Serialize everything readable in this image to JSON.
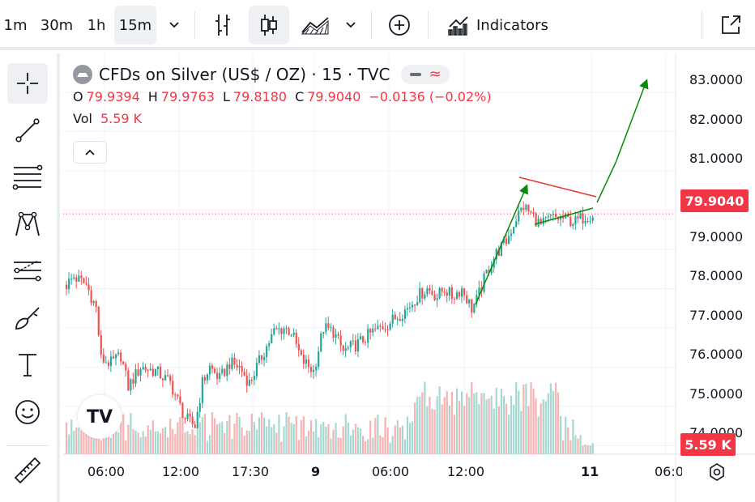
{
  "toolbar": {
    "intervals": [
      "1m",
      "30m",
      "1h",
      "15m"
    ],
    "active_interval": "15m",
    "indicators_label": "Indicators"
  },
  "symbol": {
    "title": "CFDs on Silver (US$ / OZ) · 15 · TVC",
    "open_key": "O",
    "open": "79.9394",
    "high_key": "H",
    "high": "79.9763",
    "low_key": "L",
    "low": "79.8180",
    "close_key": "C",
    "close": "79.9040",
    "change": "−0.0136 (−0.02%)",
    "vol_key": "Vol",
    "vol": "5.59 K"
  },
  "price_axis": {
    "labels": [
      "83.0000",
      "82.0000",
      "81.0000",
      "79.0000",
      "78.0000",
      "77.0000",
      "76.0000",
      "75.0000",
      "74.0000"
    ],
    "last_price": "79.9040",
    "volume_badge": "5.59 K"
  },
  "time_axis": {
    "labels": [
      "06:00",
      "12:00",
      "17:30",
      "9",
      "06:00",
      "12:00",
      "11",
      "06:0"
    ]
  },
  "logo_text": "TV",
  "colors": {
    "up": "#26a69a",
    "down": "#ef5350",
    "vol_up": "#a5d8d1",
    "vol_down": "#f7b3b2",
    "arrow_green": "#0a8a0a",
    "flag_red": "#e03b30",
    "price_line": "#f23645"
  },
  "chart_data": {
    "type": "candlestick",
    "symbol": "CFDs on Silver (US$ / OZ)",
    "interval": "15",
    "ylim": [
      73.8,
      83.8
    ],
    "price_path": [
      [
        0,
        78.1
      ],
      [
        3,
        78.3
      ],
      [
        8,
        78.1
      ],
      [
        12,
        77.5
      ],
      [
        14,
        76.2
      ],
      [
        18,
        76.1
      ],
      [
        22,
        76.3
      ],
      [
        25,
        75.5
      ],
      [
        30,
        76.0
      ],
      [
        36,
        75.9
      ],
      [
        42,
        75.6
      ],
      [
        48,
        74.7
      ],
      [
        52,
        74.5
      ],
      [
        55,
        75.6
      ],
      [
        58,
        76.0
      ],
      [
        62,
        75.7
      ],
      [
        66,
        76.1
      ],
      [
        70,
        76.0
      ],
      [
        74,
        75.6
      ],
      [
        80,
        76.4
      ],
      [
        84,
        76.9
      ],
      [
        88,
        77.0
      ],
      [
        91,
        76.9
      ],
      [
        95,
        76.2
      ],
      [
        100,
        75.9
      ],
      [
        104,
        77.0
      ],
      [
        108,
        76.9
      ],
      [
        112,
        76.4
      ],
      [
        118,
        76.6
      ],
      [
        124,
        76.9
      ],
      [
        130,
        77.1
      ],
      [
        134,
        77.3
      ],
      [
        138,
        77.5
      ],
      [
        142,
        77.8
      ],
      [
        146,
        78.0
      ],
      [
        150,
        77.8
      ],
      [
        153,
        78.0
      ],
      [
        156,
        77.8
      ],
      [
        160,
        78.0
      ],
      [
        164,
        77.5
      ],
      [
        166,
        77.7
      ],
      [
        170,
        78.4
      ],
      [
        174,
        78.9
      ],
      [
        178,
        79.2
      ],
      [
        182,
        79.8
      ],
      [
        185,
        80.1
      ],
      [
        188,
        79.9
      ],
      [
        192,
        79.6
      ],
      [
        196,
        79.8
      ],
      [
        200,
        79.8
      ],
      [
        206,
        79.7
      ],
      [
        210,
        79.85
      ],
      [
        213,
        79.9
      ]
    ],
    "volume_pattern": [
      20,
      14,
      18,
      24,
      16,
      22,
      28,
      15,
      19,
      25
    ]
  }
}
